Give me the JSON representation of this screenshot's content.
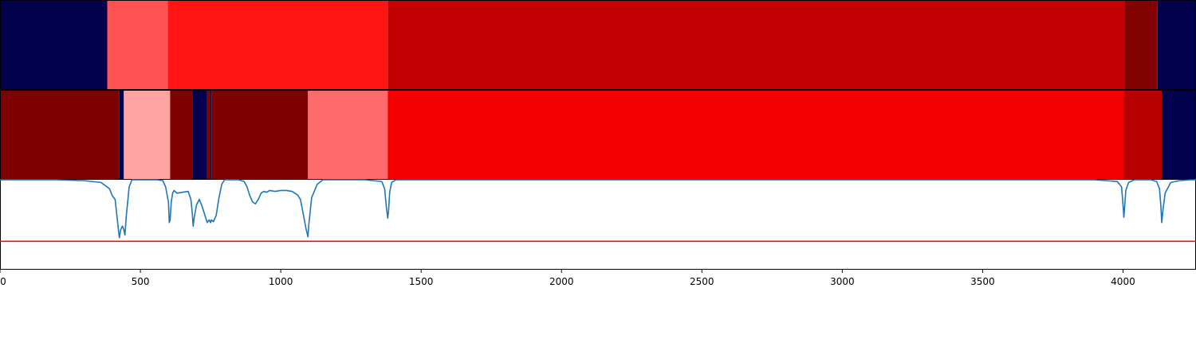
{
  "chart_data": {
    "type": "heatmap",
    "title": "",
    "xlabel": "",
    "ylabel": "",
    "xlim": [
      0,
      4260
    ],
    "x_ticks": [
      0,
      500,
      1000,
      1500,
      2000,
      2500,
      3000,
      3500,
      4000
    ],
    "x_tick_labels": [
      "0",
      "500",
      "1000",
      "1500",
      "2000",
      "2500",
      "3000",
      "3500",
      "4000"
    ],
    "grid": false,
    "legend": "none",
    "heatmap_rows": [
      {
        "segments": [
          {
            "start": 0,
            "end": 382,
            "color": "#00004c"
          },
          {
            "start": 382,
            "end": 598,
            "color": "#ff5252"
          },
          {
            "start": 598,
            "end": 1381,
            "color": "#ff1414"
          },
          {
            "start": 1381,
            "end": 4006,
            "color": "#c20000"
          },
          {
            "start": 4006,
            "end": 4123,
            "color": "#810000"
          },
          {
            "start": 4123,
            "end": 4260,
            "color": "#00004c"
          }
        ]
      },
      {
        "segments": [
          {
            "start": 0,
            "end": 425,
            "color": "#7f0000"
          },
          {
            "start": 425,
            "end": 441,
            "color": "#00004c"
          },
          {
            "start": 441,
            "end": 606,
            "color": "#ffa3a3"
          },
          {
            "start": 606,
            "end": 685,
            "color": "#7f0000"
          },
          {
            "start": 685,
            "end": 738,
            "color": "#00004c"
          },
          {
            "start": 738,
            "end": 748,
            "color": "#7f0000"
          },
          {
            "start": 748,
            "end": 753,
            "color": "#00004c"
          },
          {
            "start": 753,
            "end": 1097,
            "color": "#7f0000"
          },
          {
            "start": 1097,
            "end": 1381,
            "color": "#ff6a6a"
          },
          {
            "start": 1381,
            "end": 4003,
            "color": "#f50000"
          },
          {
            "start": 4003,
            "end": 4138,
            "color": "#b60000"
          },
          {
            "start": 4138,
            "end": 4260,
            "color": "#00004c"
          }
        ]
      }
    ],
    "line_panel": {
      "ylim": [
        0,
        1
      ],
      "threshold": {
        "value": 0.31,
        "color": "#ee1111"
      },
      "series": [
        {
          "color": "#1f77b4",
          "x": [
            0,
            200,
            300,
            360,
            390,
            400,
            410,
            418,
            425,
            430,
            436,
            441,
            445,
            450,
            460,
            470,
            480,
            500,
            560,
            580,
            590,
            600,
            603,
            606,
            610,
            615,
            620,
            630,
            650,
            670,
            680,
            685,
            688,
            692,
            700,
            710,
            720,
            730,
            738,
            745,
            750,
            753,
            760,
            770,
            780,
            790,
            800,
            820,
            850,
            870,
            880,
            890,
            900,
            910,
            920,
            930,
            940,
            950,
            960,
            980,
            1000,
            1020,
            1040,
            1060,
            1070,
            1080,
            1090,
            1097,
            1100,
            1110,
            1130,
            1150,
            1300,
            1360,
            1370,
            1376,
            1381,
            1384,
            1388,
            1395,
            1410,
            2000,
            3000,
            3900,
            3980,
            3995,
            4000,
            4003,
            4006,
            4010,
            4020,
            4040,
            4100,
            4120,
            4130,
            4135,
            4138,
            4142,
            4150,
            4170,
            4200,
            4240,
            4260
          ],
          "y": [
            1.0,
            1.0,
            0.99,
            0.97,
            0.9,
            0.82,
            0.78,
            0.55,
            0.35,
            0.44,
            0.48,
            0.44,
            0.38,
            0.6,
            0.92,
            1.0,
            1.0,
            1.0,
            1.0,
            0.99,
            0.92,
            0.75,
            0.52,
            0.55,
            0.75,
            0.85,
            0.88,
            0.85,
            0.86,
            0.87,
            0.78,
            0.62,
            0.48,
            0.58,
            0.72,
            0.78,
            0.7,
            0.6,
            0.52,
            0.55,
            0.52,
            0.55,
            0.53,
            0.6,
            0.8,
            0.95,
            1.0,
            1.0,
            1.0,
            0.98,
            0.92,
            0.82,
            0.75,
            0.73,
            0.78,
            0.85,
            0.87,
            0.86,
            0.88,
            0.87,
            0.88,
            0.88,
            0.87,
            0.83,
            0.78,
            0.62,
            0.45,
            0.36,
            0.5,
            0.8,
            0.95,
            1.0,
            1.0,
            0.98,
            0.9,
            0.7,
            0.57,
            0.65,
            0.86,
            0.97,
            1.0,
            1.0,
            1.0,
            1.0,
            0.98,
            0.92,
            0.72,
            0.58,
            0.7,
            0.88,
            0.97,
            1.0,
            1.0,
            0.98,
            0.9,
            0.7,
            0.52,
            0.65,
            0.85,
            0.97,
            0.99,
            1.0,
            1.0
          ]
        }
      ]
    }
  }
}
